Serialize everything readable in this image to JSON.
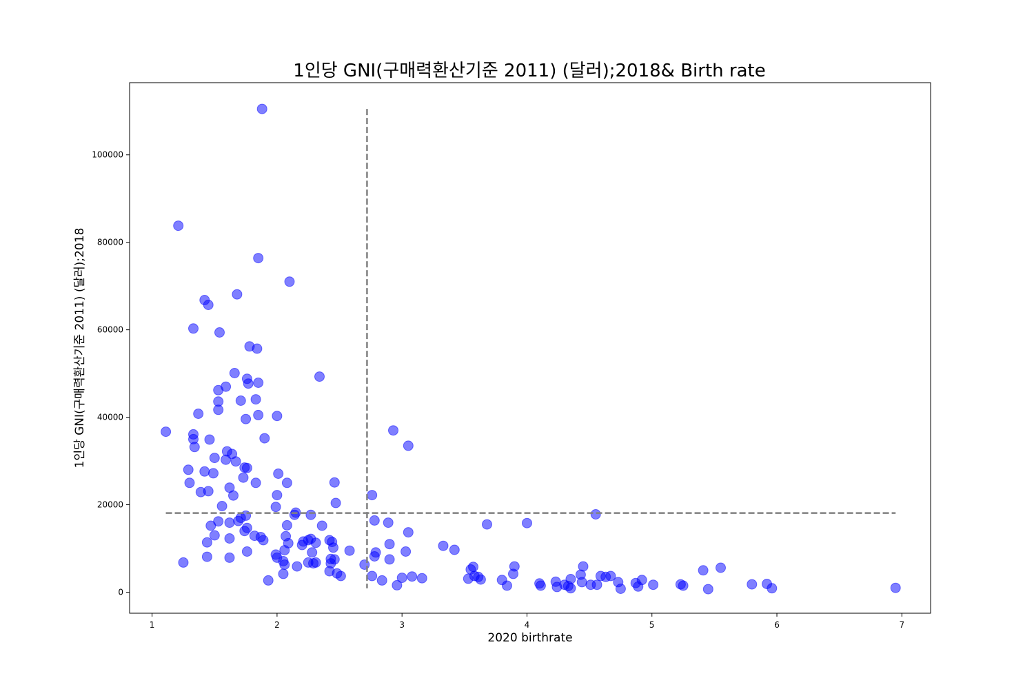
{
  "chart_data": {
    "type": "scatter",
    "title": "1인당 GNI(구매력환산기준 2011) (달러);2018& Birth rate",
    "xlabel": "2020 birthrate",
    "ylabel": "1인당 GNI(구매력환산기준 2011) (달러);2018",
    "xlim": [
      0.82,
      7.23
    ],
    "ylim": [
      -4800,
      116500
    ],
    "xticks": [
      1,
      2,
      3,
      4,
      5,
      6,
      7
    ],
    "yticks": [
      0,
      20000,
      40000,
      60000,
      80000,
      100000
    ],
    "grid": false,
    "legend": "none",
    "point_color": "#0000ff",
    "point_opacity": 0.5,
    "reference_lines": [
      {
        "orientation": "vertical",
        "x": 2.72,
        "y_range": [
          900,
          110500
        ],
        "color": "#808080",
        "style": "dashed"
      },
      {
        "orientation": "horizontal",
        "y": 18100,
        "x_range": [
          1.11,
          6.95
        ],
        "color": "#808080",
        "style": "dashed"
      }
    ],
    "points": [
      [
        1.88,
        110500
      ],
      [
        1.21,
        83800
      ],
      [
        1.85,
        76400
      ],
      [
        2.1,
        71000
      ],
      [
        1.42,
        66800
      ],
      [
        1.45,
        65700
      ],
      [
        1.68,
        68100
      ],
      [
        1.33,
        60300
      ],
      [
        1.54,
        59400
      ],
      [
        1.78,
        56200
      ],
      [
        1.84,
        55700
      ],
      [
        1.66,
        50100
      ],
      [
        1.76,
        48800
      ],
      [
        1.77,
        47700
      ],
      [
        1.85,
        47900
      ],
      [
        2.34,
        49300
      ],
      [
        1.53,
        46200
      ],
      [
        1.59,
        47000
      ],
      [
        1.53,
        43600
      ],
      [
        1.71,
        43800
      ],
      [
        1.83,
        44100
      ],
      [
        1.53,
        41700
      ],
      [
        1.37,
        40800
      ],
      [
        1.75,
        39600
      ],
      [
        1.85,
        40500
      ],
      [
        2.0,
        40300
      ],
      [
        1.11,
        36700
      ],
      [
        1.33,
        36100
      ],
      [
        1.33,
        35000
      ],
      [
        1.46,
        34900
      ],
      [
        1.9,
        35200
      ],
      [
        2.93,
        37000
      ],
      [
        3.05,
        33500
      ],
      [
        1.34,
        33200
      ],
      [
        1.6,
        32200
      ],
      [
        1.64,
        31600
      ],
      [
        1.5,
        30700
      ],
      [
        1.59,
        30300
      ],
      [
        1.67,
        29900
      ],
      [
        1.74,
        28500
      ],
      [
        1.76,
        28400
      ],
      [
        1.29,
        28000
      ],
      [
        1.42,
        27600
      ],
      [
        1.49,
        27200
      ],
      [
        2.01,
        27100
      ],
      [
        1.73,
        26200
      ],
      [
        1.3,
        25000
      ],
      [
        1.83,
        25000
      ],
      [
        2.08,
        25000
      ],
      [
        2.46,
        25100
      ],
      [
        1.45,
        23100
      ],
      [
        1.39,
        22900
      ],
      [
        1.62,
        23900
      ],
      [
        1.65,
        22100
      ],
      [
        2.0,
        22200
      ],
      [
        2.76,
        22200
      ],
      [
        2.47,
        20400
      ],
      [
        1.56,
        19700
      ],
      [
        1.99,
        19500
      ],
      [
        2.15,
        18200
      ],
      [
        2.14,
        17700
      ],
      [
        2.27,
        17700
      ],
      [
        1.71,
        17000
      ],
      [
        1.75,
        17500
      ],
      [
        1.69,
        16300
      ],
      [
        1.53,
        16200
      ],
      [
        1.62,
        15900
      ],
      [
        2.78,
        16400
      ],
      [
        2.89,
        15900
      ],
      [
        3.68,
        15500
      ],
      [
        4.0,
        15800
      ],
      [
        4.55,
        17800
      ],
      [
        1.47,
        15200
      ],
      [
        1.76,
        14700
      ],
      [
        1.74,
        14000
      ],
      [
        2.08,
        15300
      ],
      [
        2.36,
        15200
      ],
      [
        1.5,
        13000
      ],
      [
        1.62,
        12300
      ],
      [
        1.82,
        12900
      ],
      [
        1.87,
        12600
      ],
      [
        1.89,
        11900
      ],
      [
        2.07,
        12800
      ],
      [
        2.21,
        11600
      ],
      [
        2.27,
        12200
      ],
      [
        2.42,
        11900
      ],
      [
        2.44,
        11500
      ],
      [
        1.44,
        11400
      ],
      [
        2.09,
        11200
      ],
      [
        2.2,
        10800
      ],
      [
        2.31,
        11300
      ],
      [
        2.25,
        11900
      ],
      [
        2.45,
        10200
      ],
      [
        3.05,
        13700
      ],
      [
        2.9,
        11000
      ],
      [
        3.33,
        10600
      ],
      [
        3.42,
        9700
      ],
      [
        1.76,
        9300
      ],
      [
        2.06,
        9600
      ],
      [
        2.28,
        9100
      ],
      [
        2.58,
        9500
      ],
      [
        2.79,
        9100
      ],
      [
        3.03,
        9300
      ],
      [
        1.99,
        8600
      ],
      [
        2.0,
        7900
      ],
      [
        2.46,
        7500
      ],
      [
        2.43,
        7600
      ],
      [
        2.78,
        8200
      ],
      [
        2.9,
        7500
      ],
      [
        1.44,
        8100
      ],
      [
        1.62,
        7900
      ],
      [
        1.25,
        6800
      ],
      [
        2.05,
        7100
      ],
      [
        2.06,
        6300
      ],
      [
        2.25,
        6800
      ],
      [
        2.29,
        6600
      ],
      [
        2.31,
        6800
      ],
      [
        2.43,
        6600
      ],
      [
        2.7,
        6300
      ],
      [
        2.16,
        5900
      ],
      [
        4.45,
        5900
      ],
      [
        3.57,
        5800
      ],
      [
        3.55,
        5200
      ],
      [
        3.9,
        5900
      ],
      [
        5.41,
        5000
      ],
      [
        5.55,
        5600
      ],
      [
        2.42,
        4800
      ],
      [
        2.05,
        4200
      ],
      [
        2.48,
        4300
      ],
      [
        2.51,
        3700
      ],
      [
        2.76,
        3700
      ],
      [
        3.0,
        3300
      ],
      [
        3.08,
        3600
      ],
      [
        3.16,
        3200
      ],
      [
        3.53,
        3100
      ],
      [
        3.58,
        3700
      ],
      [
        3.61,
        3500
      ],
      [
        3.89,
        4200
      ],
      [
        4.43,
        4000
      ],
      [
        4.59,
        3700
      ],
      [
        4.63,
        3500
      ],
      [
        4.67,
        3700
      ],
      [
        1.93,
        2700
      ],
      [
        2.84,
        2700
      ],
      [
        3.63,
        2900
      ],
      [
        3.8,
        2800
      ],
      [
        4.23,
        2400
      ],
      [
        4.35,
        3000
      ],
      [
        4.44,
        2300
      ],
      [
        4.73,
        2300
      ],
      [
        4.87,
        2100
      ],
      [
        4.92,
        2800
      ],
      [
        5.01,
        1700
      ],
      [
        5.23,
        1800
      ],
      [
        5.25,
        1500
      ],
      [
        5.8,
        1800
      ],
      [
        5.92,
        1900
      ],
      [
        2.96,
        1600
      ],
      [
        3.84,
        1500
      ],
      [
        4.1,
        2000
      ],
      [
        4.11,
        1500
      ],
      [
        4.24,
        1200
      ],
      [
        4.3,
        1700
      ],
      [
        4.33,
        1400
      ],
      [
        4.35,
        900
      ],
      [
        4.51,
        1700
      ],
      [
        4.56,
        1700
      ],
      [
        4.75,
        800
      ],
      [
        4.89,
        1300
      ],
      [
        5.45,
        700
      ],
      [
        5.96,
        900
      ],
      [
        6.95,
        1000
      ]
    ]
  }
}
